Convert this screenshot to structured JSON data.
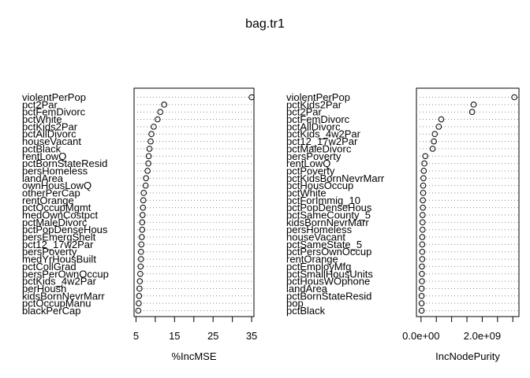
{
  "chart_data": {
    "title": "bag.tr1",
    "panels": [
      {
        "type": "dotchart",
        "xlabel": "%IncMSE",
        "xlim": [
          4.5,
          35.6
        ],
        "xticks": [
          5,
          10,
          15,
          20,
          25,
          30,
          35
        ],
        "tick_labels": [
          "5",
          "15",
          "25",
          "35"
        ],
        "labels": [
          "violentPerPop",
          "pct2Par",
          "pctFemDivorc",
          "pctWhite",
          "pctKids2Par",
          "pctAllDivorc",
          "houseVacant",
          "pctBlack",
          "rentLowQ",
          "pctBornStateResid",
          "persHomeless",
          "landArea",
          "ownHousLowQ",
          "otherPerCap",
          "rentOrange",
          "pctOccupMgmt",
          "medOwnCostpct",
          "pctMaleDivorc",
          "pctPopDenseHous",
          "persEmergShelt",
          "pct12_17w2Par",
          "persPoverty",
          "medYrHousBuilt",
          "pctCollGrad",
          "persPerOwnOccup",
          "pctKids_4w2Par",
          "perHoush",
          "kidsBornNevrMarr",
          "pctOccupManu",
          "blackPerCap"
        ],
        "values": [
          35.0,
          12.3,
          11.3,
          10.6,
          9.6,
          9.0,
          8.8,
          8.5,
          8.3,
          8.2,
          8.0,
          7.6,
          7.5,
          7.0,
          6.9,
          6.8,
          6.7,
          6.6,
          6.6,
          6.5,
          6.4,
          6.3,
          6.3,
          6.2,
          6.1,
          6.0,
          5.9,
          5.8,
          5.7,
          5.6
        ]
      },
      {
        "type": "dotchart",
        "xlabel": "IncNodePurity",
        "xlim": [
          -150000000.0,
          3200000000.0
        ],
        "xticks": [
          0,
          500000000.0,
          1000000000.0,
          1500000000.0,
          2000000000.0,
          2500000000.0,
          3000000000.0
        ],
        "tick_labels": [
          "0.0e+00",
          "2.0e+09"
        ],
        "labels": [
          "violentPerPop",
          "pctKids2Par",
          "pct2Par",
          "pctFemDivorc",
          "pctAllDivorc",
          "pctKids_4w2Par",
          "pct12_17w2Par",
          "pctMaleDivorc",
          "persPoverty",
          "rentLowQ",
          "pctPoverty",
          "pctKidsBornNevrMarr",
          "pctHousOccup",
          "pctWhite",
          "pctForImmig_10",
          "pctPopDenseHous",
          "pctSameCounty_5",
          "kidsBornNevrMarr",
          "persHomeless",
          "houseVacant",
          "pctSameState_5",
          "pctPersOwnOccup",
          "rentOrange",
          "pctEmployMfg",
          "pctSmallHousUnits",
          "pctHousWOphone",
          "landArea",
          "pctBornStateResid",
          "pop",
          "pctBlack"
        ],
        "values": [
          3050000000.0,
          1720000000.0,
          1670000000.0,
          660000000.0,
          580000000.0,
          450000000.0,
          420000000.0,
          380000000.0,
          140000000.0,
          110000000.0,
          90000000.0,
          80000000.0,
          70000000.0,
          70000000.0,
          60000000.0,
          60000000.0,
          50000000.0,
          50000000.0,
          50000000.0,
          40000000.0,
          40000000.0,
          40000000.0,
          40000000.0,
          30000000.0,
          30000000.0,
          30000000.0,
          20000000.0,
          20000000.0,
          20000000.0,
          20000000.0
        ]
      }
    ]
  }
}
